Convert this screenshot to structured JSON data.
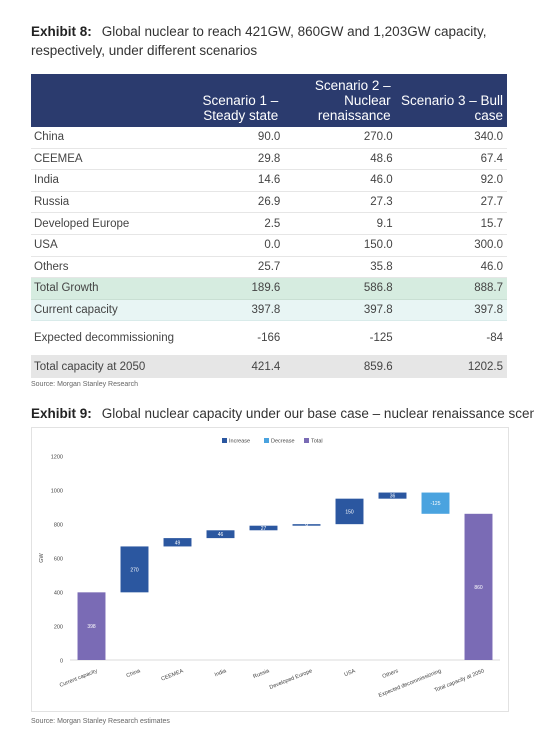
{
  "exhibit8": {
    "label": "Exhibit 8:",
    "title": "Global nuclear to reach 421GW, 860GW and 1,203GW capacity, respectively, under different scenarios",
    "headers": [
      "",
      "Scenario 1 – Steady state",
      "Scenario 2 – Nuclear renaissance",
      "Scenario 3 – Bull case"
    ],
    "rows": [
      {
        "label": "China",
        "values": [
          "90.0",
          "270.0",
          "340.0"
        ]
      },
      {
        "label": "CEEMEA",
        "values": [
          "29.8",
          "48.6",
          "67.4"
        ]
      },
      {
        "label": "India",
        "values": [
          "14.6",
          "46.0",
          "92.0"
        ]
      },
      {
        "label": "Russia",
        "values": [
          "26.9",
          "27.3",
          "27.7"
        ]
      },
      {
        "label": "Developed Europe",
        "values": [
          "2.5",
          "9.1",
          "15.7"
        ]
      },
      {
        "label": "USA",
        "values": [
          "0.0",
          "150.0",
          "300.0"
        ]
      },
      {
        "label": "Others",
        "values": [
          "25.7",
          "35.8",
          "46.0"
        ]
      }
    ],
    "total_growth": {
      "label": "Total Growth",
      "values": [
        "189.6",
        "586.8",
        "888.7"
      ]
    },
    "current_capacity": {
      "label": "Current capacity",
      "values": [
        "397.8",
        "397.8",
        "397.8"
      ]
    },
    "expected_decommissioning": {
      "label": "Expected decommissioning",
      "values": [
        "-166",
        "-125",
        "-84"
      ]
    },
    "total_2050": {
      "label": "Total capacity at 2050",
      "values": [
        "421.4",
        "859.6",
        "1202.5"
      ]
    },
    "source": "Source: Morgan Stanley Research"
  },
  "exhibit9": {
    "label": "Exhibit 9:",
    "title": "Global nuclear capacity under our base case – nuclear renaissance scenario",
    "source": "Source: Morgan Stanley Research estimates"
  },
  "chart_data": {
    "type": "bar",
    "subtype": "waterfall",
    "title": "",
    "xlabel": "",
    "ylabel": "GW",
    "ylim": [
      0,
      1200
    ],
    "yticks": [
      0,
      200,
      400,
      600,
      800,
      1000,
      1200
    ],
    "legend": {
      "placement": "top",
      "entries": [
        "Increase",
        "Decrease",
        "Total"
      ]
    },
    "colors": {
      "increase": "#2b57a0",
      "decrease": "#4aa3df",
      "total": "#7a6bb5"
    },
    "categories": [
      "Current capacity",
      "China",
      "CEEMEA",
      "India",
      "Russia",
      "Developed Europe",
      "USA",
      "Others",
      "Expected decommissioning",
      "Total capacity at 2050"
    ],
    "values": [
      398,
      270,
      49,
      46,
      27,
      9,
      150,
      36,
      -125,
      860
    ],
    "kinds": [
      "total",
      "increase",
      "increase",
      "increase",
      "increase",
      "increase",
      "increase",
      "increase",
      "decrease",
      "total"
    ],
    "data_labels": [
      "398",
      "270",
      "49",
      "46",
      "27",
      "9",
      "150",
      "36",
      "-125",
      "860"
    ]
  }
}
